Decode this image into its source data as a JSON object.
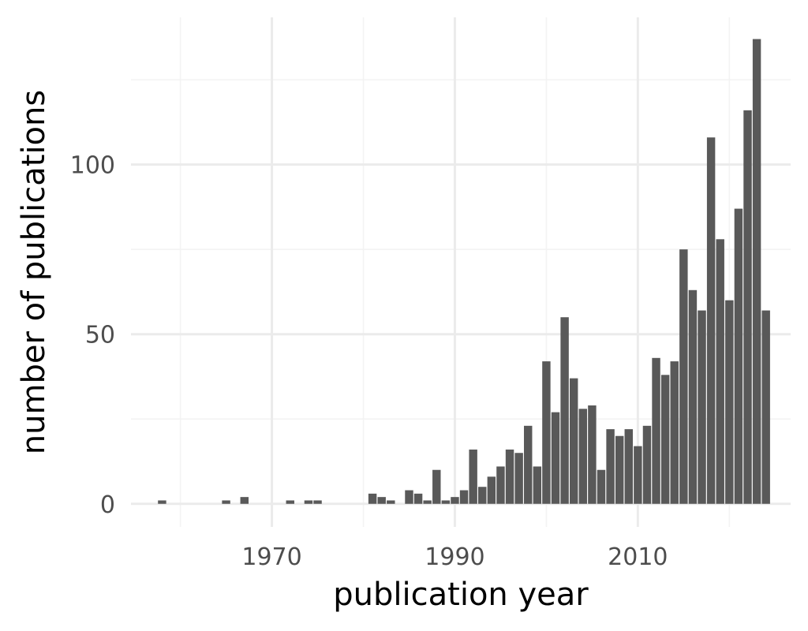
{
  "chart_data": {
    "type": "bar",
    "title": "",
    "xlabel": "publication year",
    "ylabel": "number of publications",
    "x_ticks": [
      1970,
      1990,
      2010
    ],
    "y_ticks": [
      0,
      50,
      100
    ],
    "xlim": [
      1954.6,
      2026.7
    ],
    "ylim": [
      -6.8,
      143.4
    ],
    "grid": true,
    "bar_color": "#595959",
    "x": [
      1958,
      1965,
      1967,
      1972,
      1974,
      1975,
      1981,
      1982,
      1983,
      1985,
      1986,
      1987,
      1988,
      1989,
      1990,
      1991,
      1992,
      1993,
      1994,
      1995,
      1996,
      1997,
      1998,
      1999,
      2000,
      2001,
      2002,
      2003,
      2004,
      2005,
      2006,
      2007,
      2008,
      2009,
      2010,
      2011,
      2012,
      2013,
      2014,
      2015,
      2016,
      2017,
      2018,
      2019,
      2020,
      2021,
      2022,
      2023,
      2024
    ],
    "values": [
      1,
      1,
      2,
      1,
      1,
      1,
      3,
      2,
      1,
      4,
      3,
      1,
      10,
      1,
      2,
      4,
      16,
      5,
      8,
      11,
      16,
      15,
      23,
      11,
      42,
      27,
      55,
      37,
      28,
      29,
      10,
      22,
      20,
      22,
      17,
      23,
      43,
      38,
      42,
      75,
      63,
      57,
      108,
      78,
      60,
      87,
      116,
      137,
      57
    ]
  }
}
